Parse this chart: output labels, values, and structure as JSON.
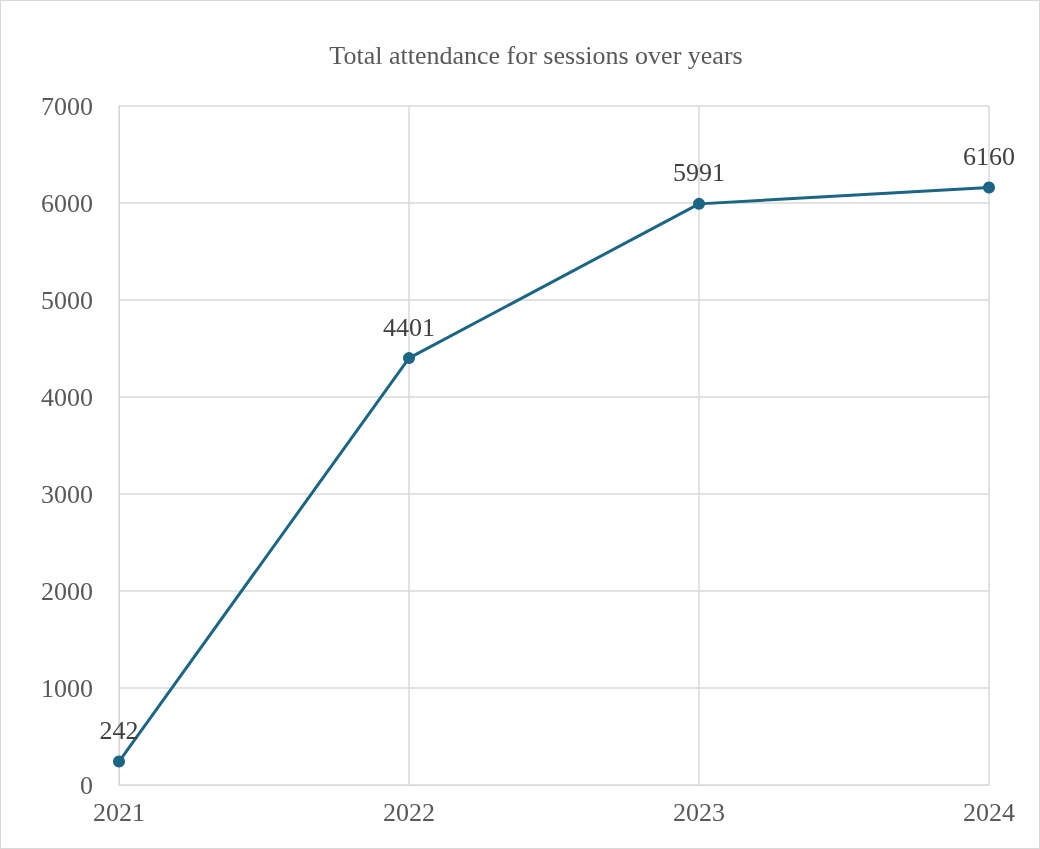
{
  "chart_data": {
    "type": "line",
    "title": "Total attendance for sessions over years",
    "categories": [
      "2021",
      "2022",
      "2023",
      "2024"
    ],
    "series": [
      {
        "color": "#1b6585",
        "values": [
          242,
          4401,
          5991,
          6160
        ]
      }
    ],
    "ylim": [
      0,
      7000
    ],
    "yticks": [
      0,
      1000,
      2000,
      3000,
      4000,
      5000,
      6000,
      7000
    ],
    "grid": true,
    "data_labels": true,
    "marker": "circle",
    "line_style": "solid"
  }
}
